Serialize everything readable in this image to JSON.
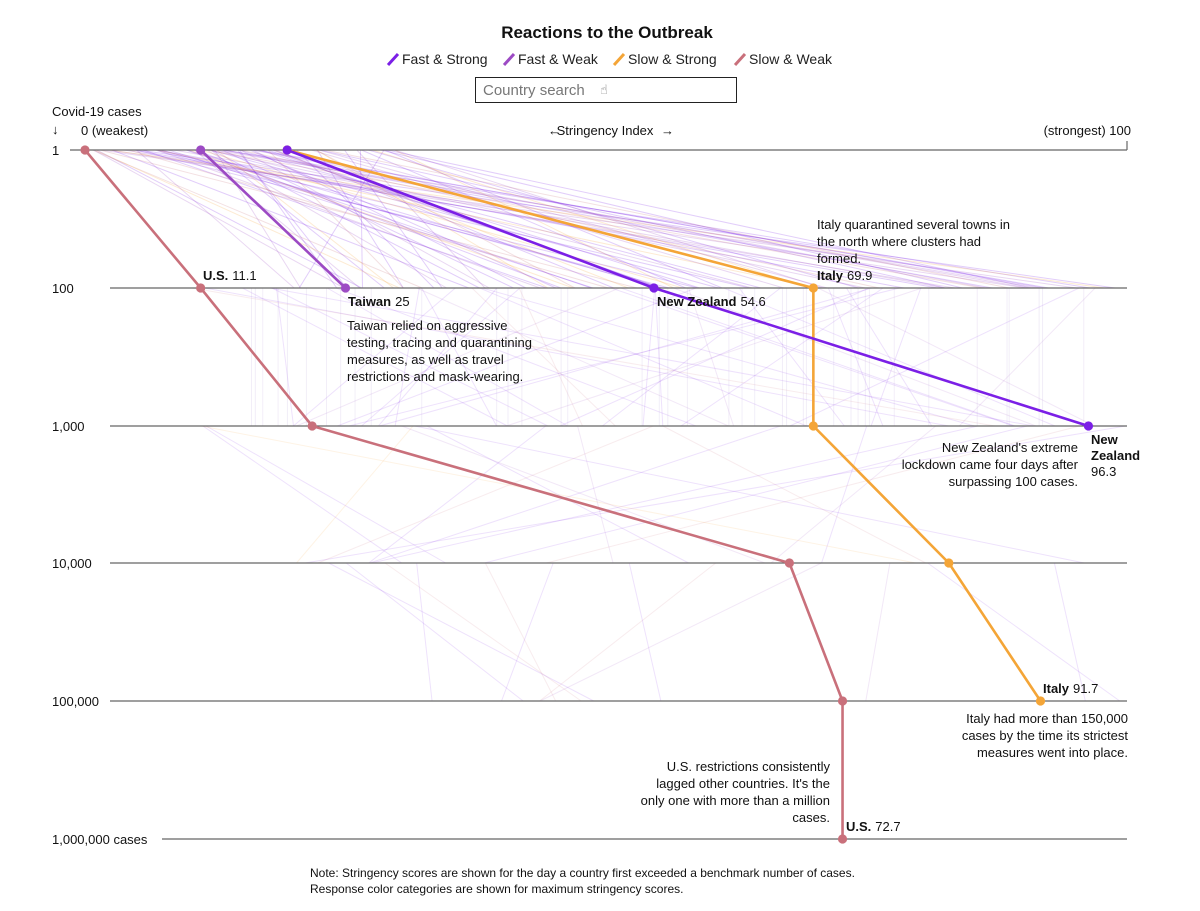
{
  "chart_data": {
    "type": "line",
    "title": "Reactions to the Outbreak",
    "legend": [
      {
        "name": "Fast & Strong",
        "color": "#7b1fe6"
      },
      {
        "name": "Fast & Weak",
        "color": "#9c4ac4"
      },
      {
        "name": "Slow & Strong",
        "color": "#f4a537"
      },
      {
        "name": "Slow & Weak",
        "color": "#c9707b"
      }
    ],
    "legend_position": "top-center",
    "x_axis": {
      "label": "Stringency Index",
      "left_label": "0 (weakest)",
      "right_label": "(strongest) 100",
      "range": [
        0,
        100
      ]
    },
    "y_axis": {
      "label": "Covid-19 cases",
      "scale": "log",
      "ticks": [
        "1",
        "100",
        "1,000",
        "10,000",
        "100,000",
        "1,000,000 cases"
      ],
      "tick_values": [
        1,
        100,
        1000,
        10000,
        100000,
        1000000
      ]
    },
    "series": [
      {
        "name": "Taiwan",
        "category": "Fast & Weak",
        "color": "#9c4ac4",
        "points": [
          {
            "cases": 1,
            "stringency": 11.1
          },
          {
            "cases": 100,
            "stringency": 25
          }
        ]
      },
      {
        "name": "New Zealand",
        "category": "Fast & Strong",
        "color": "#7b1fe6",
        "points": [
          {
            "cases": 1,
            "stringency": 19.4
          },
          {
            "cases": 100,
            "stringency": 54.6
          },
          {
            "cases": 1000,
            "stringency": 96.3
          }
        ]
      },
      {
        "name": "Italy",
        "category": "Slow & Strong",
        "color": "#f4a537",
        "points": [
          {
            "cases": 1,
            "stringency": 19.4
          },
          {
            "cases": 100,
            "stringency": 69.9
          },
          {
            "cases": 1000,
            "stringency": 69.9
          },
          {
            "cases": 10000,
            "stringency": 82.9
          },
          {
            "cases": 100000,
            "stringency": 91.7
          }
        ]
      },
      {
        "name": "U.S.",
        "category": "Slow & Weak",
        "color": "#c9707b",
        "points": [
          {
            "cases": 1,
            "stringency": 0
          },
          {
            "cases": 100,
            "stringency": 11.1
          },
          {
            "cases": 1000,
            "stringency": 21.8
          },
          {
            "cases": 10000,
            "stringency": 67.6
          },
          {
            "cases": 100000,
            "stringency": 72.7
          },
          {
            "cases": 1000000,
            "stringency": 72.7
          }
        ]
      }
    ],
    "point_labels": [
      {
        "country": "U.S.",
        "value": "11.1"
      },
      {
        "country": "Taiwan",
        "value": "25"
      },
      {
        "country": "New Zealand",
        "value": "54.6"
      },
      {
        "country": "Italy",
        "value": "69.9"
      },
      {
        "country": "New",
        "country2": "Zealand",
        "value": "96.3"
      },
      {
        "country": "Italy",
        "value": "91.7"
      },
      {
        "country": "U.S.",
        "value": "72.7"
      }
    ],
    "annotations": [
      [
        "Italy quarantined several towns in",
        "the north where clusters had",
        "formed."
      ],
      [
        "Taiwan relied on aggressive",
        "testing, tracing and quarantining",
        "measures, as well as travel",
        "restrictions and mask-wearing."
      ],
      [
        "New Zealand's extreme",
        "lockdown came four days after",
        "surpassing 100 cases."
      ],
      [
        "Italy had more than 150,000",
        "cases by the time its strictest",
        "measures went into place."
      ],
      [
        "U.S. restrictions consistently",
        "lagged other countries. It's the",
        "only one with more than a million",
        "cases."
      ]
    ],
    "notes": [
      "Note: Stringency scores are shown for the day a country first exceeded a benchmark number of cases.",
      "Response color categories are shown for maximum stringency scores."
    ],
    "background_color": "#e6d6f2"
  },
  "search": {
    "placeholder": "Country search",
    "icon": "pointer-icon"
  }
}
